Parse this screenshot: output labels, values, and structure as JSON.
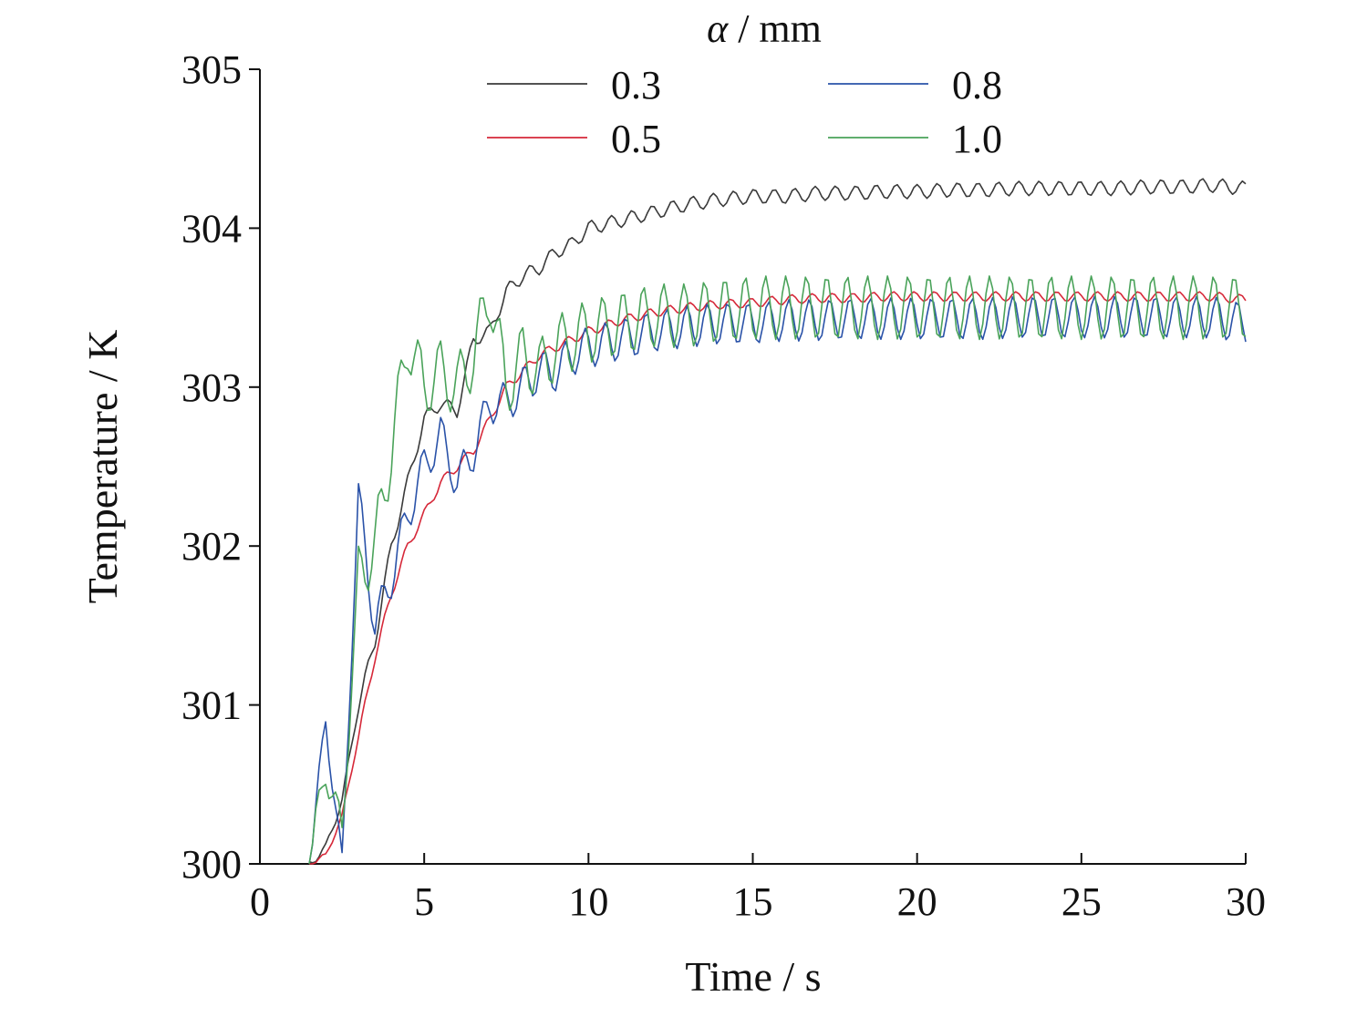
{
  "chart_data": {
    "type": "line",
    "title": "",
    "xlabel": "Time / s",
    "ylabel": "Temperature / K",
    "legend_title_symbol": "α",
    "legend_title_rest": " / mm",
    "legend_placement": "top-center",
    "grid": false,
    "xlim": [
      0,
      30
    ],
    "ylim": [
      300,
      305
    ],
    "xticks": [
      "0",
      "5",
      "10",
      "15",
      "20",
      "25",
      "30"
    ],
    "yticks": [
      "300",
      "301",
      "302",
      "303",
      "304",
      "305"
    ],
    "x": [
      1.5,
      2.0,
      2.5,
      3.0,
      3.5,
      4.0,
      4.5,
      5.0,
      5.5,
      6.0,
      6.5,
      7.0,
      7.5,
      8.0,
      8.5,
      9.0,
      9.5,
      10.0,
      11,
      12,
      13,
      14,
      15,
      16,
      17,
      18,
      19,
      20,
      21,
      22,
      23,
      24,
      25,
      26,
      27,
      28,
      29,
      30
    ],
    "series": [
      {
        "name": "0.3",
        "color": "#3a3a3a",
        "values": [
          300.0,
          300.1,
          300.4,
          301.0,
          301.4,
          302.0,
          302.4,
          302.8,
          302.9,
          302.85,
          303.3,
          303.35,
          303.6,
          303.7,
          303.75,
          303.85,
          303.9,
          304.0,
          304.05,
          304.1,
          304.15,
          304.18,
          304.2,
          304.2,
          304.22,
          304.22,
          304.23,
          304.23,
          304.24,
          304.24,
          304.25,
          304.25,
          304.25,
          304.25,
          304.26,
          304.26,
          304.27,
          304.25
        ],
        "ripple": 0.045
      },
      {
        "name": "0.5",
        "color": "#d62839",
        "values": [
          300.0,
          300.05,
          300.3,
          300.8,
          301.3,
          301.7,
          302.0,
          302.2,
          302.4,
          302.5,
          302.6,
          302.8,
          303.0,
          303.1,
          303.2,
          303.25,
          303.3,
          303.35,
          303.42,
          303.47,
          303.5,
          303.52,
          303.53,
          303.55,
          303.56,
          303.56,
          303.57,
          303.57,
          303.57,
          303.57,
          303.57,
          303.57,
          303.57,
          303.57,
          303.57,
          303.57,
          303.57,
          303.55
        ],
        "ripple": 0.03
      },
      {
        "name": "0.8",
        "color": "#2a52a8",
        "values": [
          300.0,
          300.9,
          300.0,
          302.3,
          301.5,
          301.8,
          302.2,
          302.5,
          302.7,
          302.4,
          302.6,
          302.9,
          302.9,
          303.0,
          303.1,
          303.1,
          303.2,
          303.25,
          303.3,
          303.35,
          303.38,
          303.4,
          303.4,
          303.42,
          303.42,
          303.43,
          303.43,
          303.43,
          303.43,
          303.43,
          303.44,
          303.44,
          303.44,
          303.44,
          303.44,
          303.44,
          303.44,
          303.4
        ],
        "ripple": 0.13
      },
      {
        "name": "1.0",
        "color": "#4aa35a",
        "values": [
          300.0,
          300.6,
          300.2,
          301.8,
          302.0,
          302.6,
          303.3,
          303.0,
          303.1,
          303.0,
          303.2,
          303.6,
          303.0,
          303.2,
          303.1,
          303.25,
          303.3,
          303.35,
          303.4,
          303.45,
          303.45,
          303.48,
          303.5,
          303.5,
          303.5,
          303.5,
          303.5,
          303.5,
          303.5,
          303.5,
          303.5,
          303.5,
          303.5,
          303.5,
          303.5,
          303.5,
          303.5,
          303.5
        ],
        "ripple": 0.2
      }
    ]
  }
}
